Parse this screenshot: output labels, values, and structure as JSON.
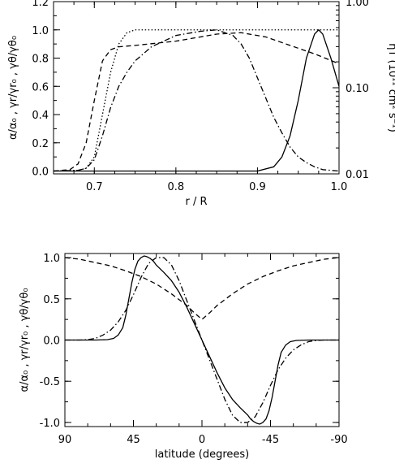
{
  "chart_data": [
    {
      "type": "line",
      "xlabel": "r / R",
      "ylabel": "α/α₀ , γr/γr₀ , γθ/γθ₀",
      "y2label": "ηT (10¹¹ cm² s⁻¹)",
      "xlim": [
        0.65,
        1.0
      ],
      "ylim": [
        -0.02,
        1.2
      ],
      "y2lim": [
        0.01,
        1.0
      ],
      "y2scale": "log",
      "x_ticks": [
        "0.7",
        "0.8",
        "0.9",
        "1.0"
      ],
      "y_ticks": [
        "0.0",
        "0.2",
        "0.4",
        "0.6",
        "0.8",
        "1.0",
        "1.2"
      ],
      "y2_ticks": [
        "0.01",
        "0.10",
        "1.00"
      ],
      "grid": false,
      "series": [
        {
          "style": "solid",
          "x": [
            0.65,
            0.9,
            0.92,
            0.93,
            0.94,
            0.95,
            0.96,
            0.97,
            0.975,
            0.98,
            0.99,
            1.0
          ],
          "y": [
            0,
            0,
            0.03,
            0.1,
            0.25,
            0.5,
            0.8,
            0.97,
            1.0,
            0.97,
            0.8,
            0.6
          ]
        },
        {
          "style": "dashed",
          "x": [
            0.65,
            0.67,
            0.68,
            0.69,
            0.7,
            0.71,
            0.72,
            0.73,
            0.75,
            0.8,
            0.85,
            0.88,
            0.91,
            0.94,
            0.97,
            1.0
          ],
          "y": [
            0,
            0.01,
            0.05,
            0.2,
            0.5,
            0.78,
            0.86,
            0.88,
            0.89,
            0.92,
            0.97,
            0.98,
            0.95,
            0.89,
            0.83,
            0.76
          ]
        },
        {
          "style": "dotted",
          "x": [
            0.65,
            0.68,
            0.69,
            0.7,
            0.71,
            0.72,
            0.73,
            0.74,
            0.75,
            0.8,
            0.9,
            1.0
          ],
          "y": [
            0,
            0.005,
            0.02,
            0.1,
            0.4,
            0.7,
            0.9,
            0.98,
            1.0,
            1.0,
            1.0,
            1.0
          ]
        },
        {
          "style": "dash-dot",
          "x": [
            0.65,
            0.68,
            0.69,
            0.7,
            0.71,
            0.72,
            0.73,
            0.74,
            0.75,
            0.77,
            0.8,
            0.83,
            0.85,
            0.87,
            0.88,
            0.89,
            0.9,
            0.91,
            0.92,
            0.93,
            0.94,
            0.95,
            0.96,
            0.97,
            0.98,
            0.99,
            1.0
          ],
          "y": [
            0,
            0.005,
            0.02,
            0.08,
            0.25,
            0.45,
            0.6,
            0.7,
            0.78,
            0.88,
            0.96,
            0.99,
            1.0,
            0.96,
            0.9,
            0.8,
            0.66,
            0.52,
            0.38,
            0.27,
            0.17,
            0.1,
            0.06,
            0.03,
            0.01,
            0.005,
            0
          ]
        }
      ]
    },
    {
      "type": "line",
      "xlabel": "latitude (degrees)",
      "ylabel": "α/α₀ , γr/γr₀ , γθ/γθ₀",
      "xlim": [
        90,
        -90
      ],
      "ylim": [
        -1.05,
        1.05
      ],
      "x_ticks": [
        "90",
        "45",
        "0",
        "-45",
        "-90"
      ],
      "y_ticks": [
        "-1.0",
        "-0.5",
        "0.0",
        "0.5",
        "1.0"
      ],
      "grid": false,
      "series": [
        {
          "style": "solid",
          "x": [
            90,
            80,
            70,
            62,
            58,
            55,
            52,
            50,
            48,
            46,
            44,
            42,
            40,
            38,
            36,
            34,
            32,
            30,
            25,
            20,
            15,
            10,
            5,
            0,
            -5,
            -10,
            -15,
            -20,
            -25,
            -30,
            -32,
            -34,
            -36,
            -38,
            -40,
            -42,
            -44,
            -46,
            -48,
            -50,
            -52,
            -55,
            -58,
            -62,
            -70,
            -80,
            -90
          ],
          "y": [
            0,
            0,
            0,
            0.005,
            0.02,
            0.06,
            0.15,
            0.3,
            0.5,
            0.7,
            0.86,
            0.96,
            1.0,
            1.02,
            1.01,
            0.99,
            0.96,
            0.91,
            0.82,
            0.72,
            0.58,
            0.4,
            0.2,
            0,
            -0.2,
            -0.4,
            -0.58,
            -0.72,
            -0.82,
            -0.91,
            -0.96,
            -0.99,
            -1.01,
            -1.02,
            -1.0,
            -0.96,
            -0.86,
            -0.7,
            -0.5,
            -0.3,
            -0.15,
            -0.06,
            -0.02,
            -0.005,
            0,
            0,
            0
          ]
        },
        {
          "style": "dashed",
          "x": [
            90,
            80,
            70,
            60,
            50,
            40,
            30,
            20,
            10,
            5,
            0,
            -5,
            -10,
            -20,
            -30,
            -40,
            -50,
            -60,
            -70,
            -80,
            -90
          ],
          "y": [
            1.0,
            0.98,
            0.94,
            0.9,
            0.84,
            0.77,
            0.68,
            0.56,
            0.42,
            0.33,
            0.25,
            0.33,
            0.42,
            0.56,
            0.68,
            0.77,
            0.84,
            0.9,
            0.94,
            0.98,
            1.0
          ]
        },
        {
          "style": "dash-dot",
          "x": [
            90,
            80,
            75,
            70,
            65,
            60,
            55,
            50,
            45,
            40,
            35,
            30,
            25,
            20,
            15,
            10,
            5,
            0,
            -5,
            -10,
            -15,
            -20,
            -25,
            -30,
            -35,
            -40,
            -45,
            -50,
            -55,
            -60,
            -65,
            -70,
            -75,
            -80,
            -90
          ],
          "y": [
            0,
            0,
            0.005,
            0.02,
            0.06,
            0.12,
            0.22,
            0.36,
            0.55,
            0.76,
            0.93,
            1.0,
            1.0,
            0.91,
            0.72,
            0.48,
            0.24,
            0,
            -0.24,
            -0.48,
            -0.72,
            -0.91,
            -1.0,
            -1.0,
            -0.93,
            -0.76,
            -0.55,
            -0.36,
            -0.22,
            -0.12,
            -0.06,
            -0.02,
            -0.005,
            0,
            0
          ]
        }
      ]
    }
  ]
}
